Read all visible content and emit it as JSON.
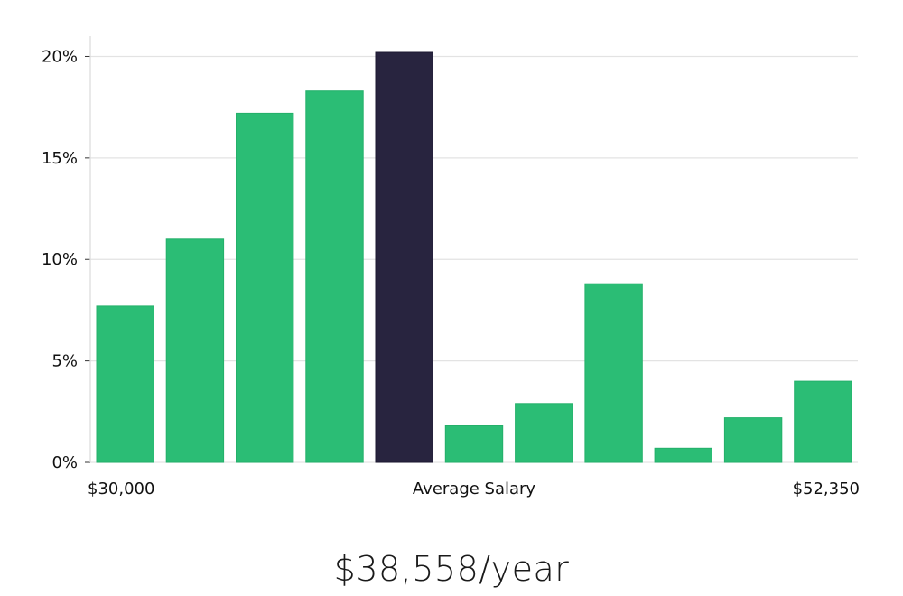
{
  "chart_data": {
    "type": "bar",
    "title": "",
    "xlabel": "Average Salary",
    "ylabel": "",
    "x_start_label": "$30,000",
    "x_end_label": "$52,350",
    "ylim": [
      0,
      21
    ],
    "yticks": [
      0,
      5,
      10,
      15,
      20
    ],
    "ytick_labels": [
      "0%",
      "5%",
      "10%",
      "15%",
      "20%"
    ],
    "values": [
      7.7,
      11.0,
      17.2,
      18.3,
      20.2,
      1.8,
      2.9,
      8.8,
      0.7,
      2.2,
      4.0
    ],
    "highlight_index": 4,
    "colors": {
      "bar": "#2bbd75",
      "highlight": "#28243f",
      "grid": "#e3e3e3",
      "axis": "#dddddd"
    },
    "grid": true
  },
  "summary": {
    "salary": "$38,558/year"
  }
}
